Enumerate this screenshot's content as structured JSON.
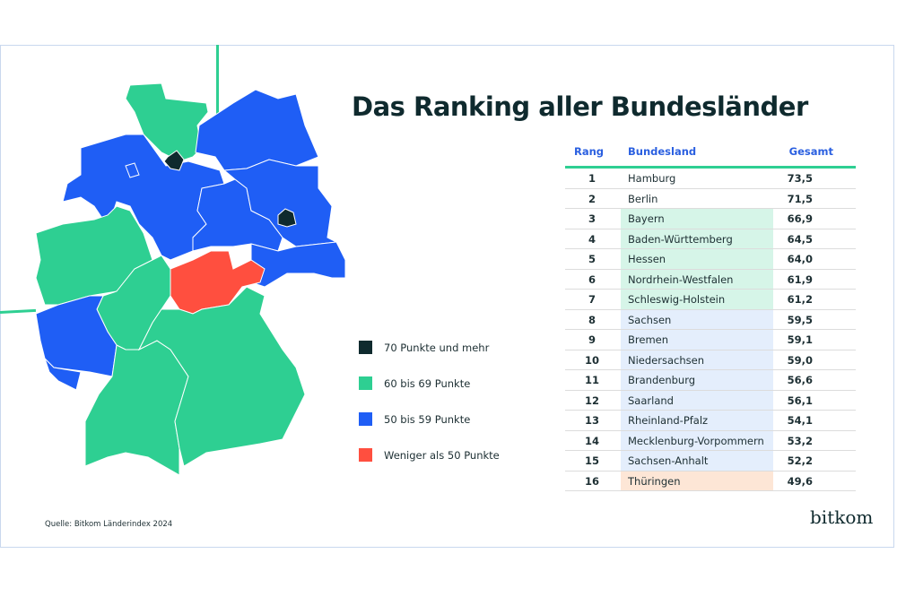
{
  "title": "Das Ranking aller Bundesländer",
  "colors": {
    "dark": "#0f2a2e",
    "green": "#2ecf92",
    "blue": "#1f5ef5",
    "red": "#ff4f3f",
    "accent_line": "#2ecf92",
    "header_text": "#2a5fe0"
  },
  "legend": [
    {
      "label": "70 Punkte und mehr",
      "tier": "dark"
    },
    {
      "label": "60 bis 69 Punkte",
      "tier": "green"
    },
    {
      "label": "50 bis 59 Punkte",
      "tier": "blue"
    },
    {
      "label": "Weniger als 50 Punkte",
      "tier": "red"
    }
  ],
  "table": {
    "headers": {
      "rank": "Rang",
      "state": "Bundesland",
      "total": "Gesamt"
    },
    "rows": [
      {
        "rank": "1",
        "state": "Hamburg",
        "total": "73,5",
        "tier": "dark"
      },
      {
        "rank": "2",
        "state": "Berlin",
        "total": "71,5",
        "tier": "dark"
      },
      {
        "rank": "3",
        "state": "Bayern",
        "total": "66,9",
        "tier": "green"
      },
      {
        "rank": "4",
        "state": "Baden-Württemberg",
        "total": "64,5",
        "tier": "green"
      },
      {
        "rank": "5",
        "state": "Hessen",
        "total": "64,0",
        "tier": "green"
      },
      {
        "rank": "6",
        "state": "Nordrhein-Westfalen",
        "total": "61,9",
        "tier": "green"
      },
      {
        "rank": "7",
        "state": "Schleswig-Holstein",
        "total": "61,2",
        "tier": "green"
      },
      {
        "rank": "8",
        "state": "Sachsen",
        "total": "59,5",
        "tier": "blue"
      },
      {
        "rank": "9",
        "state": "Bremen",
        "total": "59,1",
        "tier": "blue"
      },
      {
        "rank": "10",
        "state": "Niedersachsen",
        "total": "59,0",
        "tier": "blue"
      },
      {
        "rank": "11",
        "state": "Brandenburg",
        "total": "56,6",
        "tier": "blue"
      },
      {
        "rank": "12",
        "state": "Saarland",
        "total": "56,1",
        "tier": "blue"
      },
      {
        "rank": "13",
        "state": "Rheinland-Pfalz",
        "total": "54,1",
        "tier": "blue"
      },
      {
        "rank": "14",
        "state": "Mecklenburg-Vorpommern",
        "total": "53,2",
        "tier": "blue"
      },
      {
        "rank": "15",
        "state": "Sachsen-Anhalt",
        "total": "52,2",
        "tier": "blue"
      },
      {
        "rank": "16",
        "state": "Thüringen",
        "total": "49,6",
        "tier": "red"
      }
    ]
  },
  "chart_data": {
    "type": "table",
    "title": "Das Ranking aller Bundesländer",
    "columns": [
      "Rang",
      "Bundesland",
      "Gesamt"
    ],
    "categories": [
      "Hamburg",
      "Berlin",
      "Bayern",
      "Baden-Württemberg",
      "Hessen",
      "Nordrhein-Westfalen",
      "Schleswig-Holstein",
      "Sachsen",
      "Bremen",
      "Niedersachsen",
      "Brandenburg",
      "Saarland",
      "Rheinland-Pfalz",
      "Mecklenburg-Vorpommern",
      "Sachsen-Anhalt",
      "Thüringen"
    ],
    "values": [
      73.5,
      71.5,
      66.9,
      64.5,
      64.0,
      61.9,
      61.2,
      59.5,
      59.1,
      59.0,
      56.6,
      56.1,
      54.1,
      53.2,
      52.2,
      49.6
    ],
    "legend_placement": "center"
  },
  "source": "Quelle: Bitkom Länderindex 2024",
  "logo": "bitkom"
}
